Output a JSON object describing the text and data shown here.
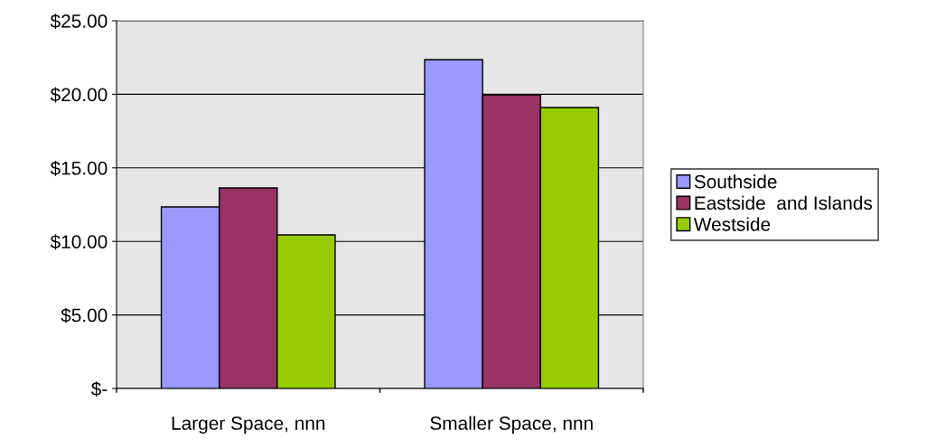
{
  "chart_data": {
    "type": "bar",
    "categories": [
      "Larger Space, nnn",
      "Smaller Space, nnn"
    ],
    "series": [
      {
        "name": "Southside",
        "color": "#9999ff",
        "values": [
          12.35,
          22.36
        ]
      },
      {
        "name": "Eastside  and Islands",
        "color": "#993366",
        "values": [
          13.64,
          19.96
        ]
      },
      {
        "name": "Westside",
        "color": "#99cc00",
        "values": [
          10.44,
          19.1
        ]
      }
    ],
    "ylim": [
      0,
      25
    ],
    "yticks": [
      {
        "value": 0,
        "label": "$-"
      },
      {
        "value": 5,
        "label": "$5.00"
      },
      {
        "value": 10,
        "label": "$10.00"
      },
      {
        "value": 15,
        "label": "$15.00"
      },
      {
        "value": 20,
        "label": "$20.00"
      },
      {
        "value": 25,
        "label": "$25.00"
      }
    ],
    "grid": "y",
    "legend": "right"
  }
}
